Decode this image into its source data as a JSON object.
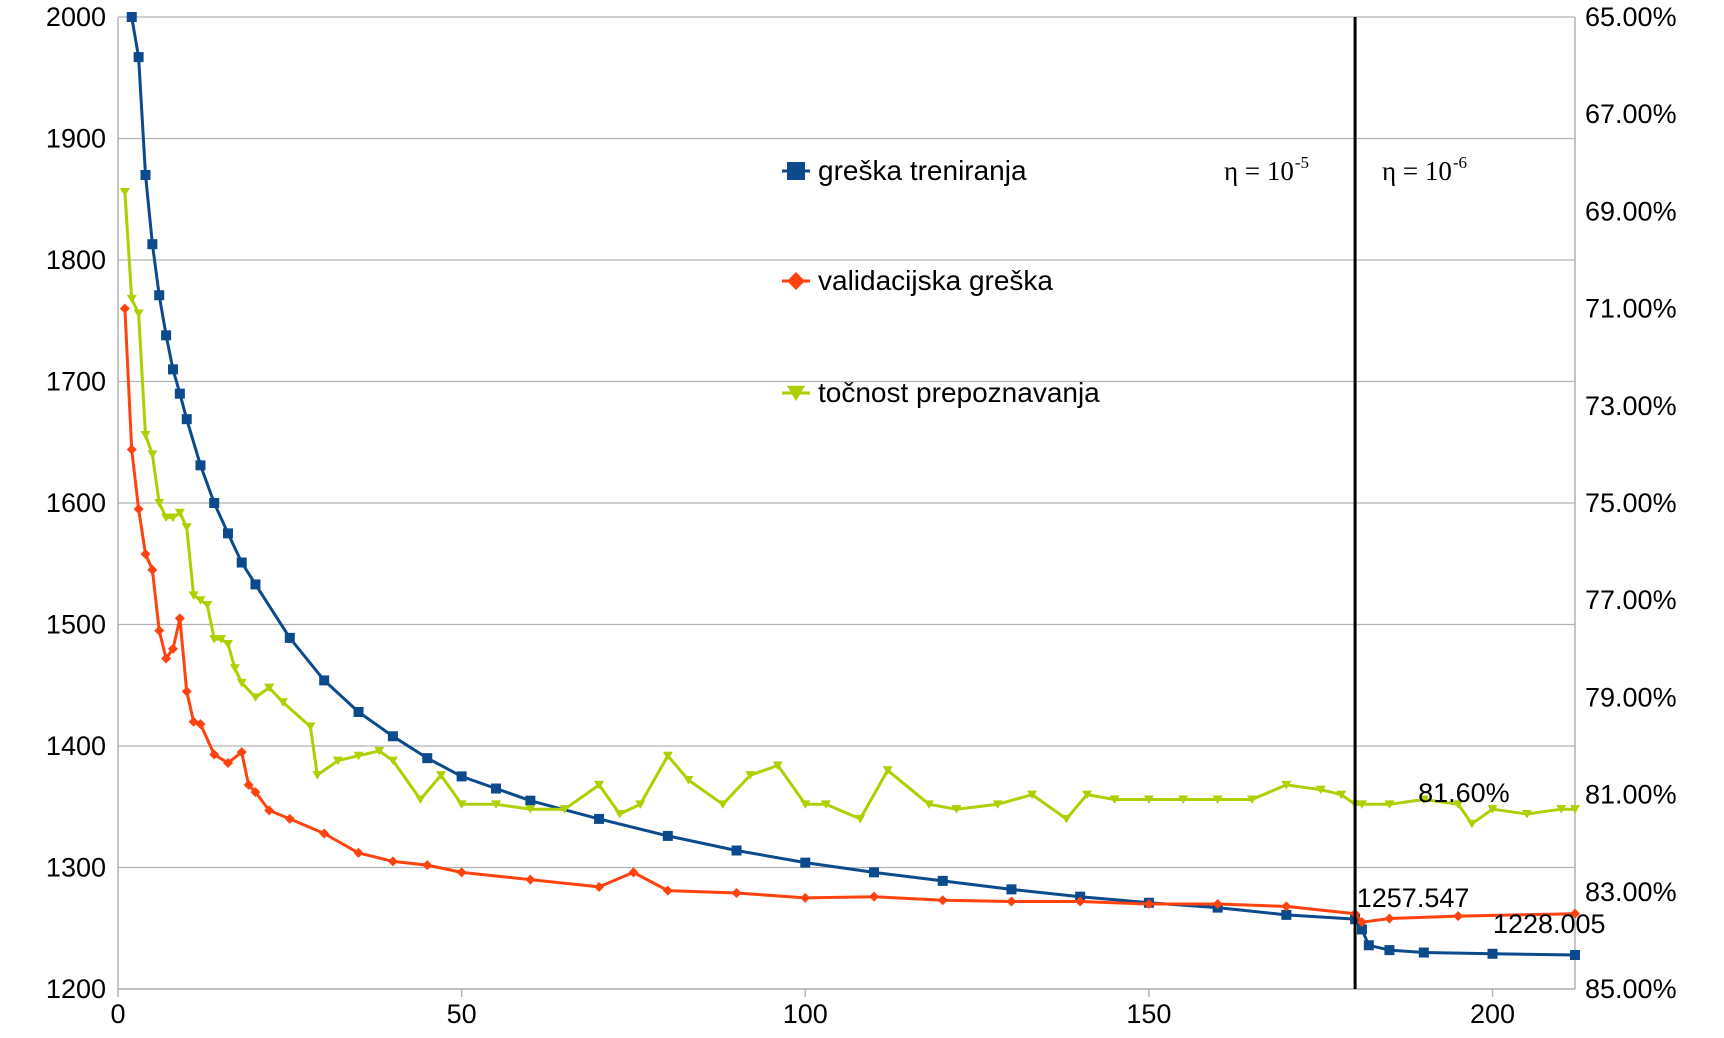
{
  "chart_data": {
    "type": "line",
    "x_ticks": [
      "0",
      "50",
      "100",
      "150",
      "200"
    ],
    "xlim": [
      0,
      212
    ],
    "y_left_ticks": [
      "2000",
      "1900",
      "1800",
      "1700",
      "1600",
      "1500",
      "1400",
      "1300",
      "1200"
    ],
    "ylim_left": [
      1200,
      2000
    ],
    "y_right_ticks": [
      "65.00%",
      "67.00%",
      "69.00%",
      "71.00%",
      "73.00%",
      "75.00%",
      "77.00%",
      "79.00%",
      "81.00%",
      "83.00%",
      "85.00%"
    ],
    "ylim_right": [
      85.0,
      65.0
    ],
    "right_axis_reversed": true,
    "grid": "horizontal",
    "legend_position": "upper-middle",
    "series": [
      {
        "name": "greška treniranja",
        "axis": "left",
        "color": "#0b4a8c",
        "marker": "square",
        "x": [
          2,
          3,
          4,
          5,
          6,
          7,
          8,
          9,
          10,
          12,
          14,
          16,
          18,
          20,
          25,
          30,
          35,
          40,
          45,
          50,
          55,
          60,
          70,
          80,
          90,
          100,
          110,
          120,
          130,
          140,
          150,
          160,
          170,
          180,
          181,
          182,
          185,
          190,
          200,
          212
        ],
        "values": [
          2000,
          1967,
          1870,
          1813,
          1771,
          1738,
          1710,
          1690,
          1669,
          1631,
          1600,
          1575,
          1551,
          1533,
          1489,
          1454,
          1428,
          1408,
          1390,
          1375,
          1365,
          1355,
          1340,
          1326,
          1314,
          1304,
          1296,
          1289,
          1282,
          1276,
          1271,
          1267,
          1261,
          1257.5,
          1249,
          1236,
          1232,
          1230,
          1229,
          1228
        ]
      },
      {
        "name": "validacijska greška",
        "axis": "left",
        "color": "#ff420e",
        "marker": "diamond",
        "x": [
          1,
          2,
          3,
          4,
          5,
          6,
          7,
          8,
          9,
          10,
          11,
          12,
          14,
          16,
          18,
          19,
          20,
          22,
          25,
          30,
          35,
          40,
          45,
          50,
          60,
          70,
          75,
          80,
          90,
          100,
          110,
          120,
          130,
          140,
          150,
          160,
          170,
          180,
          181,
          185,
          195,
          212
        ],
        "values": [
          1760,
          1644,
          1595,
          1558,
          1545,
          1495,
          1472,
          1480,
          1505,
          1445,
          1420,
          1418,
          1393,
          1386,
          1395,
          1368,
          1362,
          1347,
          1340,
          1328,
          1312,
          1305,
          1302,
          1296,
          1290,
          1284,
          1296,
          1281,
          1279,
          1275,
          1276,
          1273,
          1272,
          1272,
          1270,
          1270,
          1268,
          1262,
          1255,
          1258,
          1260,
          1262
        ]
      },
      {
        "name": "točnost prepoznavanja",
        "axis": "right",
        "color": "#aecf00",
        "marker": "triangle-down",
        "x": [
          1,
          2,
          3,
          4,
          5,
          6,
          7,
          8,
          9,
          10,
          11,
          12,
          13,
          14,
          15,
          16,
          17,
          18,
          20,
          22,
          24,
          28,
          29,
          32,
          35,
          38,
          40,
          44,
          47,
          50,
          55,
          60,
          65,
          70,
          73,
          76,
          80,
          83,
          88,
          92,
          96,
          100,
          103,
          108,
          112,
          118,
          122,
          128,
          133,
          138,
          141,
          145,
          150,
          155,
          160,
          165,
          170,
          175,
          178,
          180,
          181,
          185,
          190,
          195,
          197,
          200,
          205,
          210,
          212
        ],
        "values": [
          68.6,
          70.8,
          71.1,
          73.6,
          74.0,
          75.0,
          75.3,
          75.3,
          75.2,
          75.5,
          76.9,
          77.0,
          77.1,
          77.8,
          77.8,
          77.9,
          78.4,
          78.7,
          79.0,
          78.8,
          79.1,
          79.6,
          80.6,
          80.3,
          80.2,
          80.1,
          80.3,
          81.1,
          80.6,
          81.2,
          81.2,
          81.3,
          81.3,
          80.8,
          81.4,
          81.2,
          80.2,
          80.7,
          81.2,
          80.6,
          80.4,
          81.2,
          81.2,
          81.5,
          80.5,
          81.2,
          81.3,
          81.2,
          81.0,
          81.5,
          81.0,
          81.1,
          81.1,
          81.1,
          81.1,
          81.1,
          80.8,
          80.9,
          81.0,
          81.2,
          81.2,
          81.2,
          81.1,
          81.2,
          81.6,
          81.3,
          81.4,
          81.3,
          81.3
        ]
      }
    ],
    "vertical_line_x": 180,
    "eta_left": {
      "base": "η = 10",
      "exp": "-5"
    },
    "eta_right": {
      "base": "η = 10",
      "exp": "-6"
    },
    "annotations": [
      {
        "text": "81.60%",
        "x": 197,
        "value": 81.6,
        "axis": "right"
      },
      {
        "text": "1257.547",
        "x": 180,
        "value": 1257.547,
        "axis": "left"
      },
      {
        "text": "1228.005",
        "x": 210,
        "value": 1228.005,
        "axis": "left"
      }
    ]
  }
}
